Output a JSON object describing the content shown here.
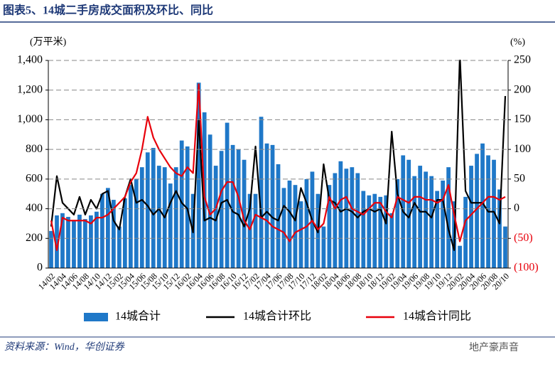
{
  "chart_data": {
    "type": "combo",
    "title": "图表5、14城二手房成交面积及环比、同比",
    "y_label": "(万平米)",
    "y2_label": "(%)",
    "source": "资料来源：Wind，华创证券",
    "watermark": "地产豪声音",
    "categories": [
      "14/02",
      null,
      "14/04",
      null,
      "14/06",
      null,
      "14/08",
      null,
      "14/10",
      null,
      "14/12",
      null,
      "15/02",
      null,
      "15/04",
      null,
      "15/06",
      null,
      "15/08",
      null,
      "15/10",
      null,
      "15/12",
      null,
      "16/02",
      null,
      "16/04",
      null,
      "16/06",
      null,
      "16/08",
      null,
      "16/10",
      null,
      "16/12",
      null,
      "17/02",
      null,
      "17/04",
      null,
      "17/06",
      null,
      "17/08",
      null,
      "17/10",
      null,
      "17/12",
      null,
      "18/02",
      null,
      "18/04",
      null,
      "18/06",
      null,
      "18/08",
      null,
      "18/10",
      null,
      "18/12",
      null,
      "19/02",
      null,
      "19/04",
      null,
      "19/06",
      null,
      "19/08",
      null,
      "19/10",
      null,
      "19/12",
      null,
      "20/02",
      null,
      "20/04",
      null,
      "20/06",
      null,
      "20/08",
      null,
      "20/10"
    ],
    "series": [
      {
        "name": "14城合计",
        "type": "bar",
        "color": "#1f78c8",
        "axis": "y",
        "values": [
          250,
          355,
          370,
          345,
          320,
          360,
          330,
          355,
          380,
          500,
          540,
          460,
          280,
          470,
          560,
          600,
          680,
          780,
          810,
          690,
          680,
          570,
          680,
          860,
          820,
          500,
          1250,
          1050,
          900,
          690,
          790,
          980,
          830,
          800,
          730,
          500,
          500,
          1020,
          840,
          830,
          700,
          540,
          590,
          560,
          450,
          600,
          650,
          500,
          280,
          560,
          640,
          720,
          670,
          680,
          640,
          520,
          490,
          500,
          480,
          490,
          370,
          600,
          760,
          730,
          620,
          690,
          650,
          620,
          520,
          590,
          680,
          450,
          150,
          480,
          690,
          770,
          840,
          760,
          730,
          530,
          280
        ]
      },
      {
        "name": "14城合计环比",
        "type": "line",
        "color": "#000000",
        "axis": "y2",
        "values": [
          -30,
          55,
          10,
          0,
          -10,
          20,
          -10,
          15,
          0,
          25,
          30,
          -20,
          -35,
          20,
          50,
          10,
          15,
          5,
          -10,
          0,
          -15,
          10,
          30,
          10,
          0,
          -40,
          150,
          -20,
          -15,
          -20,
          10,
          15,
          -5,
          -10,
          -30,
          0,
          105,
          -15,
          -5,
          -15,
          -20,
          5,
          -5,
          -20,
          35,
          10,
          -20,
          -40,
          75,
          15,
          10,
          -5,
          0,
          -5,
          -15,
          -5,
          0,
          -5,
          0,
          -25,
          130,
          25,
          -5,
          -15,
          10,
          -5,
          -5,
          -15,
          15,
          15,
          -35,
          -70,
          260,
          30,
          10,
          10,
          10,
          -5,
          -5,
          -25,
          190
        ]
      },
      {
        "name": "14城合计同比",
        "type": "line",
        "color": "#e8000b",
        "axis": "y2",
        "values": [
          -20,
          -70,
          -15,
          -20,
          -20,
          -20,
          -20,
          -25,
          -15,
          -15,
          -10,
          0,
          10,
          20,
          45,
          60,
          100,
          155,
          120,
          100,
          85,
          70,
          60,
          55,
          70,
          60,
          210,
          20,
          -10,
          0,
          30,
          45,
          45,
          20,
          -20,
          -35,
          -10,
          -15,
          -20,
          -30,
          -35,
          -40,
          -55,
          -40,
          -35,
          -30,
          -20,
          -35,
          -25,
          20,
          0,
          15,
          20,
          0,
          -5,
          -10,
          0,
          10,
          10,
          -5,
          -15,
          20,
          15,
          10,
          20,
          20,
          15,
          15,
          10,
          15,
          40,
          -10,
          -55,
          -20,
          -10,
          0,
          10,
          20,
          20,
          15,
          20
        ]
      }
    ],
    "ylim": [
      0,
      1400
    ],
    "yticks": [
      0,
      200,
      400,
      600,
      800,
      {
        "value": 1000,
        "label": "1,000"
      },
      {
        "value": 1200,
        "label": "1,200"
      },
      {
        "value": 1400,
        "label": "1,400"
      }
    ],
    "y2lim": [
      -100,
      250
    ],
    "y2ticks": [
      {
        "value": -100,
        "label": "(100)"
      },
      {
        "value": -50,
        "label": "(50)"
      },
      0,
      50,
      100,
      150,
      200,
      250
    ],
    "grid": true
  }
}
